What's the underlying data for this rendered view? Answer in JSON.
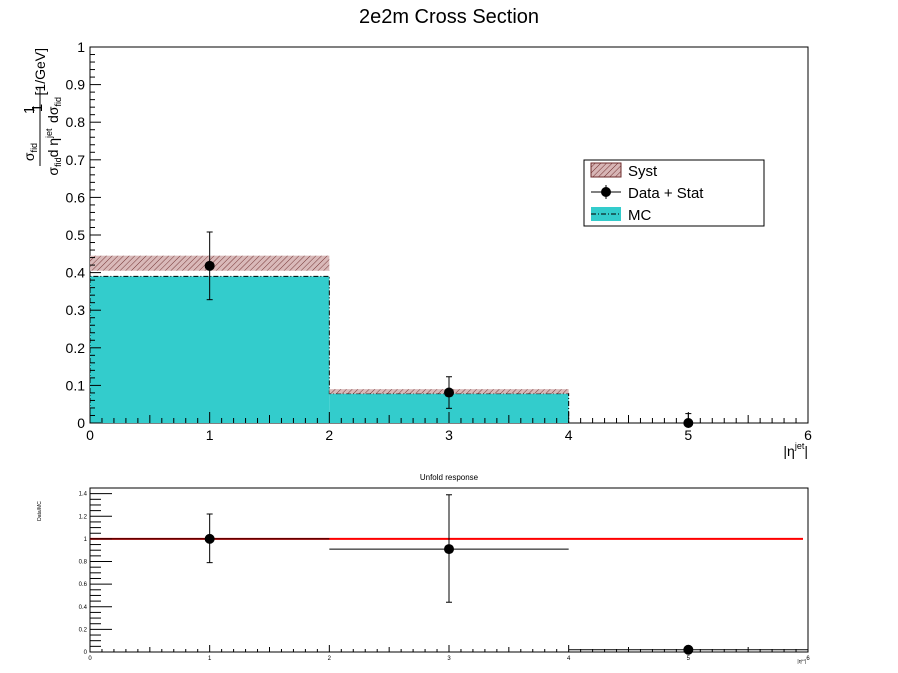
{
  "chart_data": [
    {
      "type": "bar",
      "title": "2e2m Cross Section",
      "xlabel": "|η^{jet}|",
      "ylabel": "1/σ_fid dσ_fid/dη^{jet} [1/GeV]",
      "xlim": [
        0,
        6
      ],
      "ylim": [
        0,
        1
      ],
      "x_ticks": [
        "0",
        "1",
        "2",
        "3",
        "4",
        "5",
        "6"
      ],
      "y_ticks": [
        "0",
        "0.1",
        "0.2",
        "0.3",
        "0.4",
        "0.5",
        "0.6",
        "0.7",
        "0.8",
        "0.9",
        "1"
      ],
      "bins": [
        [
          0,
          2
        ],
        [
          2,
          4
        ],
        [
          4,
          6
        ]
      ],
      "mc": [
        0.39,
        0.078,
        0.0
      ],
      "syst": [
        [
          0.405,
          0.445
        ],
        [
          0.078,
          0.09
        ],
        [
          0.0,
          0.0
        ]
      ],
      "data": [
        {
          "x": 1,
          "y": 0.418,
          "err_low": 0.09,
          "err_high": 0.09
        },
        {
          "x": 3,
          "y": 0.081,
          "err_low": 0.042,
          "err_high": 0.042
        },
        {
          "x": 5,
          "y": 0.0,
          "err_low": 0.0,
          "err_high": 0.025
        }
      ],
      "legend": {
        "placement": "right",
        "entries": [
          "Syst",
          "Data + Stat",
          "MC"
        ]
      },
      "colors": {
        "mc": "#33cccc",
        "syst": "#b08080",
        "data": "#000000"
      }
    },
    {
      "type": "scatter",
      "title": "Unfold response",
      "ylabel": "Data/MC",
      "xlabel": "|η^{jet}|",
      "xlim": [
        0,
        6
      ],
      "ylim": [
        0,
        1.45
      ],
      "x_ticks": [
        "0",
        "1",
        "2",
        "3",
        "4",
        "5",
        "6"
      ],
      "y_ticks": [
        "0",
        "0.2",
        "0.4",
        "0.6",
        "0.8",
        "1",
        "1.2",
        "1.4"
      ],
      "reference_line": 1.0,
      "points": [
        {
          "x": 1,
          "y": 1.0,
          "xerr": [
            0,
            2
          ],
          "err_low": 0.21,
          "err_high": 0.22
        },
        {
          "x": 3,
          "y": 0.91,
          "xerr": [
            2,
            4
          ],
          "err_low": 0.47,
          "err_high": 0.48
        },
        {
          "x": 5,
          "y": 0.02,
          "xerr": [
            4,
            6
          ],
          "err_low": 0.0,
          "err_high": 0.0
        }
      ],
      "colors": {
        "reference_line": "#ff0000",
        "points": "#000000"
      }
    }
  ]
}
